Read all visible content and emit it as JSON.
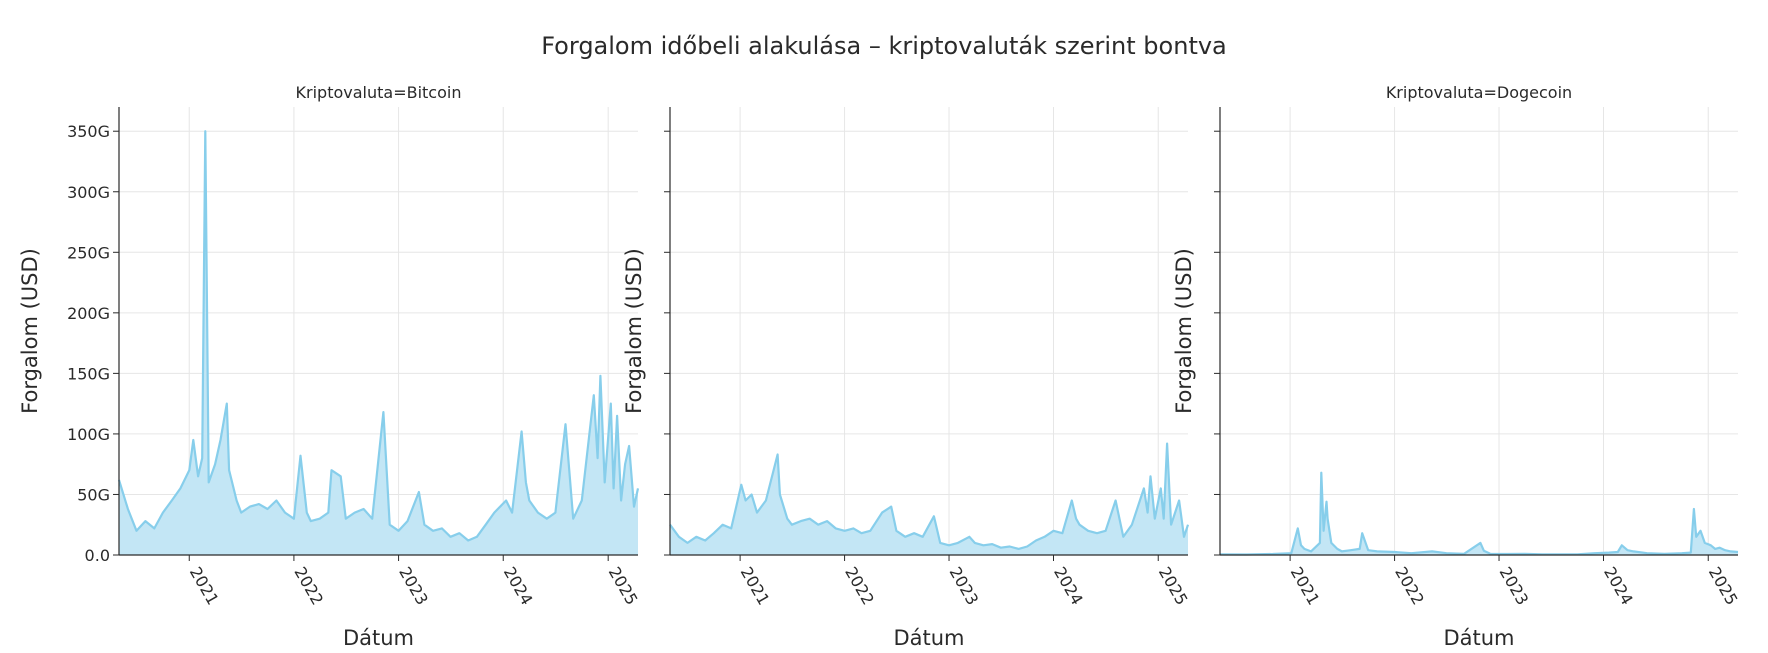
{
  "chart_data": {
    "type": "area",
    "title": "Forgalom időbeli alakulása – kriptovaluták szerint bontva",
    "xlabel": "Dátum",
    "ylabel": "Forgalom (USD)",
    "x_range": [
      "2020-05-01",
      "2025-04-15"
    ],
    "y_range": [
      0,
      370000000000
    ],
    "x_ticks": [
      {
        "value": "2021-01-01",
        "label": "2021"
      },
      {
        "value": "2022-01-01",
        "label": "2022"
      },
      {
        "value": "2023-01-01",
        "label": "2023"
      },
      {
        "value": "2024-01-01",
        "label": "2024"
      },
      {
        "value": "2025-01-01",
        "label": "2025"
      }
    ],
    "y_ticks": [
      {
        "value": 0,
        "label": "0.0"
      },
      {
        "value": 50000000000,
        "label": "50G"
      },
      {
        "value": 100000000000,
        "label": "100G"
      },
      {
        "value": 150000000000,
        "label": "150G"
      },
      {
        "value": 200000000000,
        "label": "200G"
      },
      {
        "value": 250000000000,
        "label": "250G"
      },
      {
        "value": 300000000000,
        "label": "300G"
      },
      {
        "value": 350000000000,
        "label": "350G"
      }
    ],
    "grid": true,
    "line_color": "#87CEEB",
    "fill_color": "#C3E6F5",
    "facets": [
      {
        "title": "Kriptovaluta=Bitcoin",
        "x": [
          "2020-05-01",
          "2020-06-01",
          "2020-07-01",
          "2020-08-01",
          "2020-09-01",
          "2020-10-01",
          "2020-11-01",
          "2020-12-01",
          "2021-01-01",
          "2021-01-15",
          "2021-02-01",
          "2021-02-15",
          "2021-02-26",
          "2021-03-10",
          "2021-04-01",
          "2021-04-20",
          "2021-05-12",
          "2021-05-20",
          "2021-06-15",
          "2021-07-01",
          "2021-08-01",
          "2021-09-01",
          "2021-10-01",
          "2021-11-01",
          "2021-12-01",
          "2022-01-01",
          "2022-01-24",
          "2022-02-15",
          "2022-03-01",
          "2022-04-01",
          "2022-05-01",
          "2022-05-12",
          "2022-06-13",
          "2022-07-01",
          "2022-08-01",
          "2022-09-01",
          "2022-10-01",
          "2022-11-09",
          "2022-12-01",
          "2023-01-01",
          "2023-02-01",
          "2023-03-13",
          "2023-04-01",
          "2023-05-01",
          "2023-06-01",
          "2023-07-01",
          "2023-08-01",
          "2023-09-01",
          "2023-10-01",
          "2023-11-01",
          "2023-12-01",
          "2024-01-11",
          "2024-02-01",
          "2024-03-05",
          "2024-03-20",
          "2024-04-01",
          "2024-05-01",
          "2024-06-01",
          "2024-07-01",
          "2024-08-05",
          "2024-09-01",
          "2024-10-01",
          "2024-11-12",
          "2024-11-25",
          "2024-12-05",
          "2024-12-20",
          "2025-01-10",
          "2025-01-20",
          "2025-02-01",
          "2025-02-15",
          "2025-03-01",
          "2025-03-15",
          "2025-04-01",
          "2025-04-15"
        ],
        "y": [
          62000000000,
          38000000000,
          20000000000,
          28000000000,
          22000000000,
          35000000000,
          45000000000,
          55000000000,
          70000000000,
          95000000000,
          65000000000,
          80000000000,
          350000000000,
          60000000000,
          75000000000,
          95000000000,
          125000000000,
          70000000000,
          45000000000,
          35000000000,
          40000000000,
          42000000000,
          38000000000,
          45000000000,
          35000000000,
          30000000000,
          82000000000,
          35000000000,
          28000000000,
          30000000000,
          35000000000,
          70000000000,
          65000000000,
          30000000000,
          35000000000,
          38000000000,
          30000000000,
          118000000000,
          25000000000,
          20000000000,
          28000000000,
          52000000000,
          25000000000,
          20000000000,
          22000000000,
          15000000000,
          18000000000,
          12000000000,
          15000000000,
          25000000000,
          35000000000,
          45000000000,
          35000000000,
          102000000000,
          60000000000,
          45000000000,
          35000000000,
          30000000000,
          35000000000,
          108000000000,
          30000000000,
          45000000000,
          132000000000,
          80000000000,
          148000000000,
          60000000000,
          125000000000,
          55000000000,
          115000000000,
          45000000000,
          75000000000,
          90000000000,
          40000000000,
          55000000000
        ]
      },
      {
        "title": "",
        "x": [
          "2020-05-01",
          "2020-06-01",
          "2020-07-01",
          "2020-08-01",
          "2020-09-01",
          "2020-10-01",
          "2020-11-01",
          "2020-12-01",
          "2021-01-05",
          "2021-01-20",
          "2021-02-10",
          "2021-03-01",
          "2021-04-01",
          "2021-05-12",
          "2021-05-20",
          "2021-06-15",
          "2021-07-01",
          "2021-08-01",
          "2021-09-01",
          "2021-10-01",
          "2021-11-01",
          "2021-12-01",
          "2022-01-01",
          "2022-02-01",
          "2022-03-01",
          "2022-04-01",
          "2022-05-12",
          "2022-06-13",
          "2022-07-01",
          "2022-08-01",
          "2022-09-01",
          "2022-10-01",
          "2022-11-09",
          "2022-12-01",
          "2023-01-01",
          "2023-02-01",
          "2023-03-13",
          "2023-04-01",
          "2023-05-01",
          "2023-06-01",
          "2023-07-01",
          "2023-08-01",
          "2023-09-01",
          "2023-10-01",
          "2023-11-01",
          "2023-12-01",
          "2024-01-01",
          "2024-02-01",
          "2024-03-05",
          "2024-03-20",
          "2024-04-01",
          "2024-05-01",
          "2024-06-01",
          "2024-07-01",
          "2024-08-05",
          "2024-09-01",
          "2024-10-01",
          "2024-11-12",
          "2024-11-25",
          "2024-12-05",
          "2024-12-20",
          "2025-01-10",
          "2025-01-20",
          "2025-02-01",
          "2025-02-15",
          "2025-03-01",
          "2025-03-15",
          "2025-04-01",
          "2025-04-15"
        ],
        "y": [
          25000000000,
          15000000000,
          10000000000,
          15000000000,
          12000000000,
          18000000000,
          25000000000,
          22000000000,
          58000000000,
          45000000000,
          50000000000,
          35000000000,
          45000000000,
          83000000000,
          50000000000,
          30000000000,
          25000000000,
          28000000000,
          30000000000,
          25000000000,
          28000000000,
          22000000000,
          20000000000,
          22000000000,
          18000000000,
          20000000000,
          35000000000,
          40000000000,
          20000000000,
          15000000000,
          18000000000,
          15000000000,
          32000000000,
          10000000000,
          8000000000,
          10000000000,
          15000000000,
          10000000000,
          8000000000,
          9000000000,
          6000000000,
          7000000000,
          5000000000,
          7000000000,
          12000000000,
          15000000000,
          20000000000,
          18000000000,
          45000000000,
          30000000000,
          25000000000,
          20000000000,
          18000000000,
          20000000000,
          45000000000,
          15000000000,
          25000000000,
          55000000000,
          35000000000,
          65000000000,
          30000000000,
          55000000000,
          30000000000,
          92000000000,
          25000000000,
          35000000000,
          45000000000,
          15000000000,
          25000000000
        ]
      },
      {
        "title": "Kriptovaluta=Dogecoin",
        "x": [
          "2020-05-01",
          "2020-08-01",
          "2020-11-01",
          "2021-01-05",
          "2021-01-28",
          "2021-02-08",
          "2021-02-20",
          "2021-03-15",
          "2021-04-15",
          "2021-04-20",
          "2021-04-28",
          "2021-05-08",
          "2021-05-12",
          "2021-05-25",
          "2021-06-15",
          "2021-07-01",
          "2021-08-01",
          "2021-09-01",
          "2021-09-10",
          "2021-10-01",
          "2021-11-01",
          "2022-01-01",
          "2022-03-01",
          "2022-05-12",
          "2022-07-01",
          "2022-09-01",
          "2022-10-28",
          "2022-11-09",
          "2022-12-01",
          "2023-02-01",
          "2023-04-01",
          "2023-06-01",
          "2023-08-01",
          "2023-10-01",
          "2023-12-01",
          "2024-01-20",
          "2024-02-20",
          "2024-03-05",
          "2024-03-25",
          "2024-04-15",
          "2024-06-01",
          "2024-08-01",
          "2024-10-01",
          "2024-11-01",
          "2024-11-12",
          "2024-11-20",
          "2024-12-05",
          "2024-12-20",
          "2025-01-10",
          "2025-01-25",
          "2025-02-10",
          "2025-03-01",
          "2025-03-20",
          "2025-04-15"
        ],
        "y": [
          500000000,
          400000000,
          800000000,
          1500000000,
          22000000000,
          8000000000,
          5000000000,
          3000000000,
          10000000000,
          68000000000,
          20000000000,
          44000000000,
          30000000000,
          10000000000,
          5000000000,
          3000000000,
          4000000000,
          5000000000,
          18000000000,
          4000000000,
          3000000000,
          2500000000,
          1500000000,
          3000000000,
          1500000000,
          1000000000,
          10000000000,
          3500000000,
          1000000000,
          800000000,
          1000000000,
          500000000,
          600000000,
          500000000,
          1500000000,
          2000000000,
          2500000000,
          8000000000,
          4000000000,
          3000000000,
          1500000000,
          1000000000,
          1500000000,
          2000000000,
          38000000000,
          15000000000,
          20000000000,
          10000000000,
          8000000000,
          5000000000,
          6000000000,
          4000000000,
          3000000000,
          2500000000
        ]
      }
    ]
  }
}
